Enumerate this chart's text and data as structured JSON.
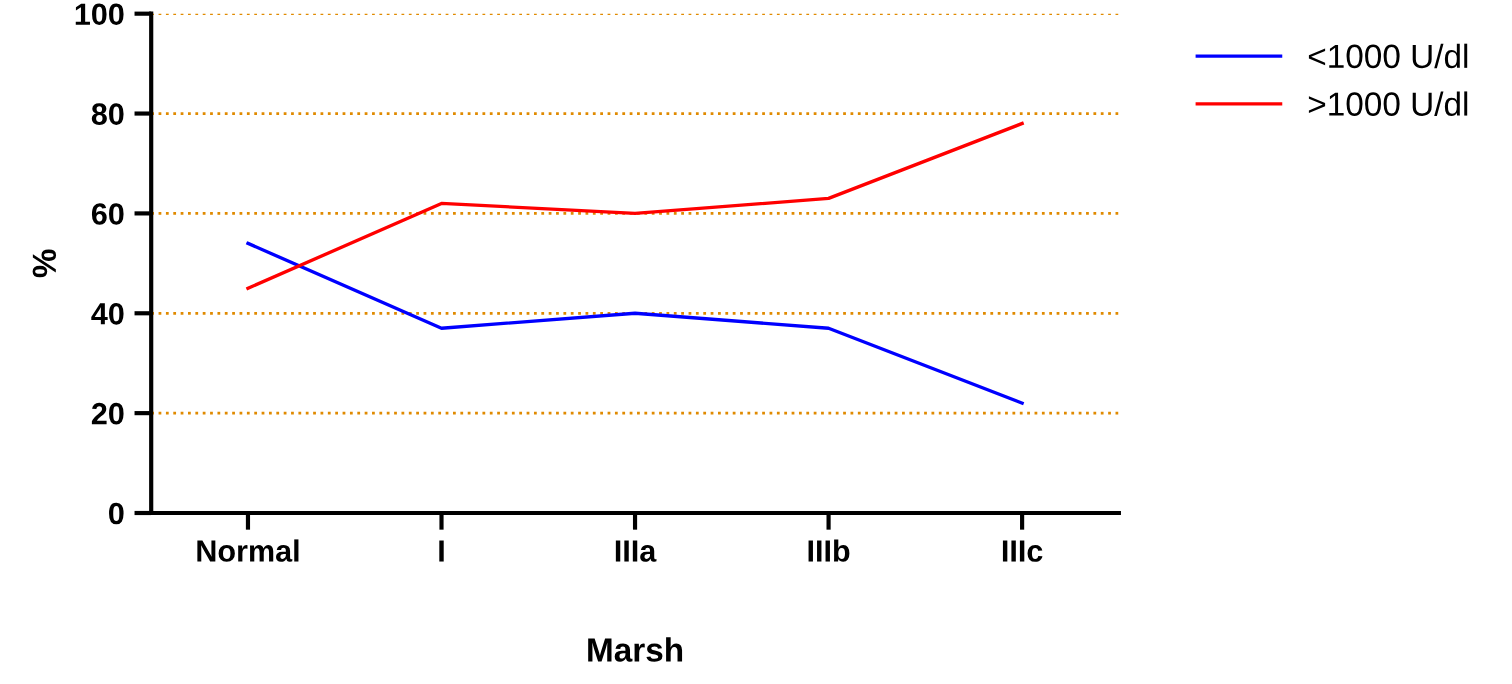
{
  "chart_data": {
    "type": "line",
    "xlabel": "Marsh",
    "ylabel": "%",
    "categories": [
      "Normal",
      "I",
      "IIIa",
      "IIIb",
      "IIIc"
    ],
    "series": [
      {
        "name": "<1000 U/dl",
        "color": "#0000ff",
        "values": [
          54,
          37,
          40,
          37,
          22
        ]
      },
      {
        "name": ">1000 U/dl",
        "color": "#ff0000",
        "values": [
          45,
          62,
          60,
          63,
          78
        ]
      }
    ],
    "ylim": [
      0,
      100
    ],
    "yticks": [
      0,
      20,
      40,
      60,
      80,
      100
    ],
    "grid": "y",
    "legend": "top right",
    "marker": "none",
    "line_style": "solid"
  }
}
